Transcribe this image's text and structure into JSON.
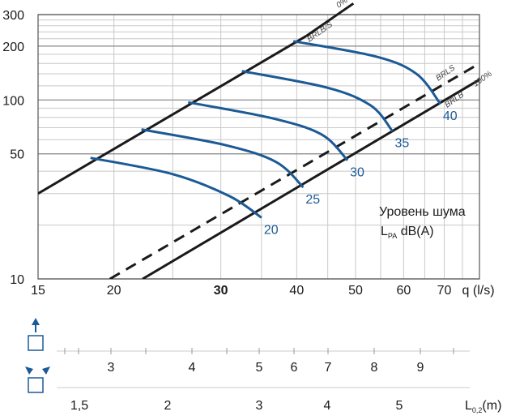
{
  "chart_data": {
    "type": "line",
    "xlabel": "q (l/s)",
    "ylabel": "",
    "x_scale": "log",
    "y_scale": "log",
    "xlim": [
      15,
      80
    ],
    "ylim": [
      10,
      300
    ],
    "x_ticks": [
      {
        "value": 15,
        "label": "15",
        "bold": false
      },
      {
        "value": 20,
        "label": "20",
        "bold": false
      },
      {
        "value": 30,
        "label": "30",
        "bold": true
      },
      {
        "value": 40,
        "label": "40",
        "bold": false
      },
      {
        "value": 50,
        "label": "50",
        "bold": false
      },
      {
        "value": 60,
        "label": "60",
        "bold": false
      },
      {
        "value": 70,
        "label": "70",
        "bold": false
      }
    ],
    "x_unit_label": "q (l/s)",
    "y_ticks": [
      {
        "value": 10,
        "label": "10"
      },
      {
        "value": 50,
        "label": "50"
      },
      {
        "value": 100,
        "label": "100"
      },
      {
        "value": 200,
        "label": "200"
      },
      {
        "value": 300,
        "label": "300"
      }
    ],
    "grid": true,
    "boundary_lines": [
      {
        "label": "BRLB/S",
        "top_label": "0%",
        "style": "solid",
        "points": [
          [
            15,
            30
          ],
          [
            41.5,
            228
          ]
        ]
      },
      {
        "label": "BRLS",
        "top_label": "",
        "style": "dashed",
        "points": [
          [
            19.7,
            10
          ],
          [
            80,
            160
          ]
        ]
      },
      {
        "label": "BRLB",
        "top_label": "100%",
        "style": "solid",
        "points": [
          [
            22.3,
            10
          ],
          [
            80,
            130
          ]
        ]
      }
    ],
    "noise_curves": [
      {
        "label": "20",
        "points": [
          [
            18.3,
            47.5
          ],
          [
            25,
            38.5
          ],
          [
            31,
            29
          ],
          [
            35,
            22
          ]
        ]
      },
      {
        "label": "25",
        "points": [
          [
            22.2,
            68.5
          ],
          [
            30.5,
            56
          ],
          [
            37,
            45
          ],
          [
            41,
            32.5
          ]
        ]
      },
      {
        "label": "30",
        "points": [
          [
            26.5,
            97
          ],
          [
            36.5,
            79
          ],
          [
            44,
            64
          ],
          [
            48.5,
            46
          ]
        ]
      },
      {
        "label": "35",
        "points": [
          [
            32.5,
            145
          ],
          [
            45,
            117
          ],
          [
            53,
            93
          ],
          [
            57.5,
            67
          ]
        ]
      },
      {
        "label": "40",
        "points": [
          [
            39.5,
            213
          ],
          [
            54,
            175
          ],
          [
            63,
            140
          ],
          [
            69,
            95
          ]
        ]
      }
    ],
    "annotation": {
      "line1": "Уровень шума",
      "line2_main": "L",
      "line2_sub": "PA",
      "line2_rest": " dB(A)"
    },
    "scales": [
      {
        "icon": "throw-up",
        "ticks": [
          "3",
          "4",
          "5",
          "6",
          "7",
          "8",
          "9"
        ],
        "unit_main": "",
        "unit_sub": "",
        "unit_rest": ""
      },
      {
        "icon": "throw-spread",
        "ticks": [
          "1,5",
          "2",
          "3",
          "4",
          "5"
        ],
        "unit_main": "L",
        "unit_sub": "0,2",
        "unit_rest": "(m)"
      }
    ]
  },
  "colors": {
    "line": "#1a1a1a",
    "curve": "#1c5a96",
    "grid": "#c8c8c8",
    "arrow": "#1c5a96"
  }
}
